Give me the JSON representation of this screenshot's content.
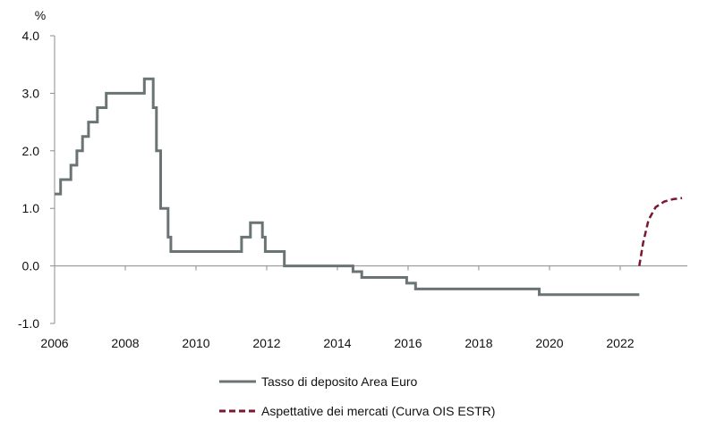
{
  "chart_data": {
    "type": "line",
    "ylabel": "%",
    "xlim": [
      2006,
      2023.9
    ],
    "ylim": [
      -1.0,
      4.0
    ],
    "x_ticks": [
      "2006",
      "2008",
      "2010",
      "2012",
      "2014",
      "2016",
      "2018",
      "2020",
      "2022"
    ],
    "y_ticks": [
      "-1.0",
      "0.0",
      "1.0",
      "2.0",
      "3.0",
      "4.0"
    ],
    "grid": false,
    "legend_position": "bottom",
    "series": [
      {
        "name": "Tasso di deposito Area Euro",
        "color": "#6b7475",
        "style": "solid-step",
        "points": [
          [
            2006.0,
            1.25
          ],
          [
            2006.17,
            1.5
          ],
          [
            2006.46,
            1.75
          ],
          [
            2006.63,
            2.0
          ],
          [
            2006.79,
            2.25
          ],
          [
            2006.96,
            2.5
          ],
          [
            2007.21,
            2.75
          ],
          [
            2007.46,
            3.0
          ],
          [
            2008.54,
            3.25
          ],
          [
            2008.79,
            2.75
          ],
          [
            2008.88,
            2.0
          ],
          [
            2009.0,
            1.0
          ],
          [
            2009.21,
            0.5
          ],
          [
            2009.29,
            0.25
          ],
          [
            2011.29,
            0.5
          ],
          [
            2011.54,
            0.75
          ],
          [
            2011.88,
            0.5
          ],
          [
            2011.96,
            0.25
          ],
          [
            2012.5,
            0.0
          ],
          [
            2014.44,
            -0.1
          ],
          [
            2014.69,
            -0.2
          ],
          [
            2015.96,
            -0.3
          ],
          [
            2016.21,
            -0.4
          ],
          [
            2019.71,
            -0.5
          ],
          [
            2022.54,
            -0.5
          ]
        ]
      },
      {
        "name": "Aspettative dei mercati (Curva OIS ESTR)",
        "color": "#7b1730",
        "style": "dashed",
        "points": [
          [
            2022.54,
            0.0
          ],
          [
            2022.65,
            0.4
          ],
          [
            2022.8,
            0.8
          ],
          [
            2023.0,
            1.02
          ],
          [
            2023.25,
            1.12
          ],
          [
            2023.5,
            1.16
          ],
          [
            2023.75,
            1.18
          ]
        ]
      }
    ]
  }
}
